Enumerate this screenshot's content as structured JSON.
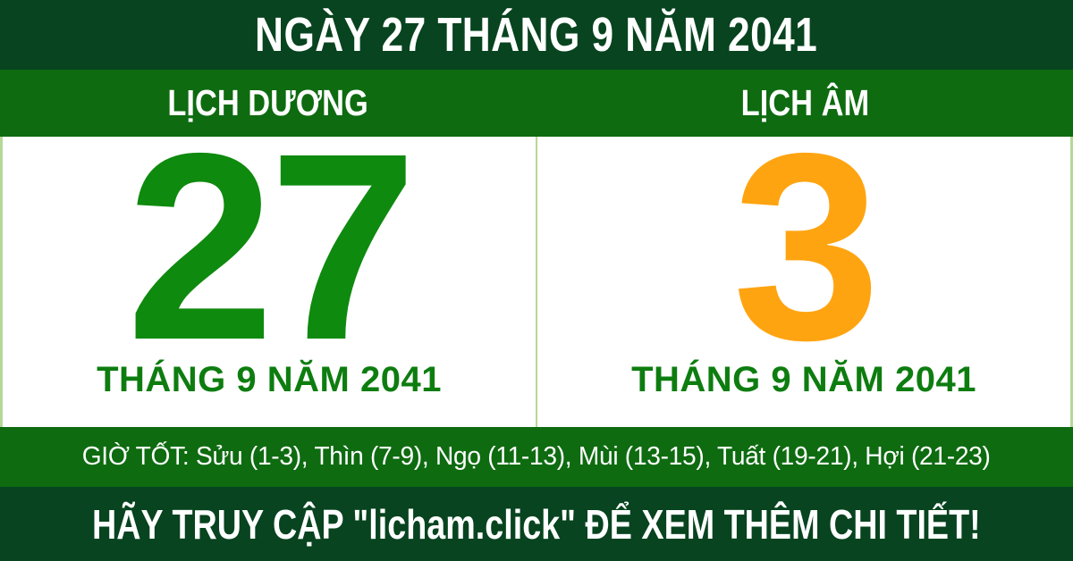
{
  "title_bar": {
    "text": "NGÀY 27 THÁNG 9 NĂM 2041"
  },
  "columns": {
    "solar": {
      "header": "LỊCH DƯƠNG",
      "day": "27",
      "month_year": "THÁNG 9 NĂM 2041"
    },
    "lunar": {
      "header": "LỊCH ÂM",
      "day": "3",
      "month_year": "THÁNG 9 NĂM 2041"
    }
  },
  "good_hours": {
    "text": "GIỜ TỐT: Sửu (1-3), Thìn (7-9), Ngọ (11-13), Mùi (13-15), Tuất (19-21), Hợi (21-23)"
  },
  "footer": {
    "text": "HÃY TRUY CẬP \"licham.click\" ĐỂ XEM THÊM CHI TIẾT!"
  },
  "colors": {
    "dark_green": "#07441f",
    "band_green": "#0e6b10",
    "day_green": "#0e8a0e",
    "month_green": "#0e7d10",
    "day_orange": "#ffa411",
    "divider_green": "#b5d898",
    "panel_white": "#ffffff",
    "text_white": "#ffffff"
  }
}
